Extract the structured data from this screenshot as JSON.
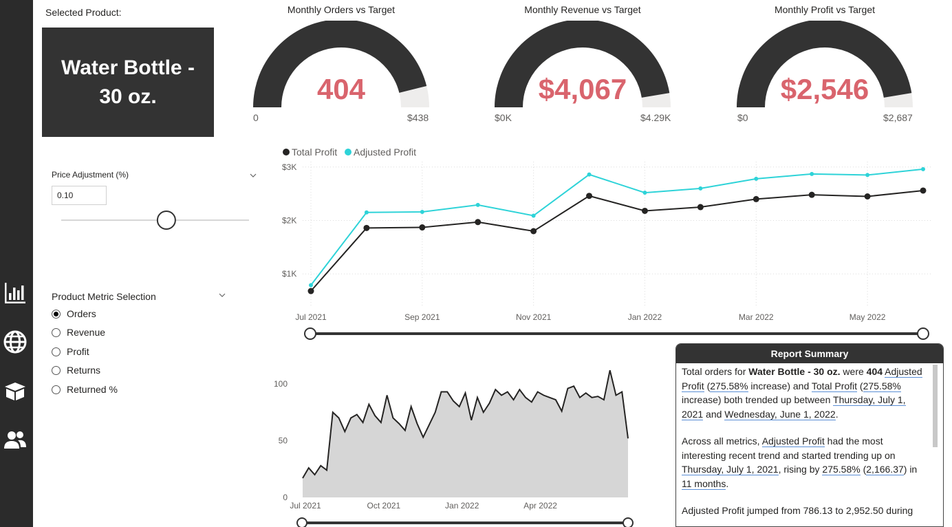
{
  "nav": {
    "icons": [
      "report-chart-icon",
      "globe-icon",
      "box-icon",
      "users-icon"
    ]
  },
  "selected_product_label": "Selected Product:",
  "selected_product": "Water Bottle - 30 oz.",
  "price_adjustment": {
    "label": "Price Adjustment (%)",
    "value": "0.10",
    "slider_level": 0.56
  },
  "metric_selection": {
    "label": "Product Metric Selection",
    "options": [
      "Orders",
      "Revenue",
      "Profit",
      "Returns",
      "Returned %"
    ],
    "selected": "Orders"
  },
  "gauges": [
    {
      "title": "Monthly Orders vs Target",
      "value": "404",
      "min": "0",
      "max": "$438",
      "fill": 0.922
    },
    {
      "title": "Monthly Revenue vs Target",
      "value": "$4,067",
      "min": "$0K",
      "max": "$4.29K",
      "fill": 0.948
    },
    {
      "title": "Monthly Profit vs Target",
      "value": "$2,546",
      "min": "$0",
      "max": "$2,687",
      "fill": 0.948
    }
  ],
  "colors": {
    "accent": "#d9646d",
    "dark": "#333333",
    "series_total": "#252423",
    "series_adjusted": "#2ed3d8"
  },
  "chart_data": [
    {
      "type": "line",
      "legend": [
        "Total Profit",
        "Adjusted Profit"
      ],
      "x": [
        "Jul 2021",
        "Aug 2021",
        "Sep 2021",
        "Oct 2021",
        "Nov 2021",
        "Dec 2021",
        "Jan 2022",
        "Feb 2022",
        "Mar 2022",
        "Apr 2022",
        "May 2022",
        "Jun 2022"
      ],
      "x_tick_labels": [
        "Jul 2021",
        "Sep 2021",
        "Nov 2021",
        "Jan 2022",
        "Mar 2022",
        "May 2022"
      ],
      "y_tick_labels": [
        "$1K",
        "$2K",
        "$3K"
      ],
      "series": [
        {
          "name": "Total Profit",
          "values": [
            680,
            1860,
            1870,
            1970,
            1800,
            2460,
            2180,
            2250,
            2400,
            2480,
            2450,
            2560
          ]
        },
        {
          "name": "Adjusted Profit",
          "values": [
            790,
            2150,
            2160,
            2290,
            2090,
            2860,
            2520,
            2600,
            2780,
            2870,
            2850,
            2960
          ]
        }
      ],
      "ylim": [
        500,
        3100
      ],
      "grid": true,
      "legend_position": "top-left"
    },
    {
      "type": "area",
      "x_tick_labels": [
        "Jul 2021",
        "Oct 2021",
        "Jan 2022",
        "Apr 2022"
      ],
      "y_tick_labels": [
        "0",
        "50",
        "100"
      ],
      "ylim": [
        0,
        120
      ],
      "x_start": "2021-07-01",
      "x_step_days": 7,
      "series": [
        {
          "name": "Orders",
          "values": [
            17,
            26,
            20,
            28,
            24,
            75,
            70,
            58,
            70,
            73,
            66,
            82,
            72,
            66,
            90,
            70,
            65,
            59,
            80,
            65,
            53,
            64,
            75,
            93,
            93,
            85,
            80,
            92,
            68,
            88,
            75,
            83,
            95,
            90,
            93,
            86,
            95,
            88,
            84,
            93,
            90,
            88,
            86,
            76,
            96,
            98,
            88,
            92,
            88,
            89,
            86,
            112,
            90,
            93,
            52
          ]
        }
      ],
      "grid": false
    }
  ],
  "summary": {
    "title": "Report Summary",
    "p1": {
      "t1": "Total orders for ",
      "product": "Water Bottle - 30 oz.",
      "t2": " were ",
      "orders": "404",
      "m1": "Adjusted Profit",
      "t3": " (",
      "pct1": "275.58%",
      "t4": " increase) and ",
      "m2": "Total Profit",
      "t5": " (",
      "pct2": "275.58%",
      "t6": " increase) both trended up between ",
      "d1": "Thursday, July 1, 2021",
      "t7": " and ",
      "d2": "Wednesday, June 1, 2022",
      "t8": "."
    },
    "p2": {
      "t1": "Across all metrics, ",
      "m1": "Adjusted Profit",
      "t2": " had the most interesting recent trend and started trending up on ",
      "d1": "Thursday, July 1, 2021",
      "t3": ", rising by ",
      "pct": "275.58%",
      "t4": " (",
      "val": "2,166.37",
      "t5": ") in ",
      "n": "11 months",
      "t6": "."
    },
    "p3": "Adjusted Profit jumped from 786.13 to 2,952.50 during"
  }
}
